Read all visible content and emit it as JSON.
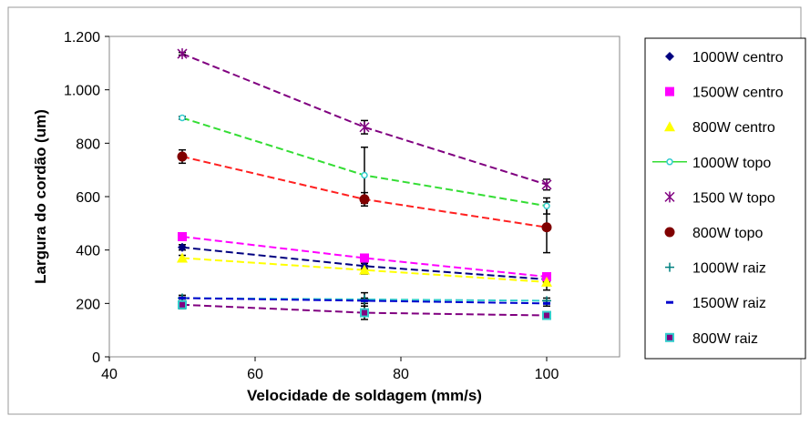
{
  "chart_data": {
    "type": "scatter",
    "x_label": "Velocidade de soldagem (mm/s)",
    "y_label": "Largura do cordão (um)",
    "x": [
      50,
      75,
      100
    ],
    "xlim": [
      40,
      110
    ],
    "xticks": [
      40,
      60,
      80,
      100
    ],
    "ylim": [
      0,
      1200
    ],
    "yticks": [
      0,
      200,
      400,
      600,
      800,
      {
        "value": 1000,
        "label": "1.000"
      },
      {
        "value": 1200,
        "label": "1.200"
      }
    ],
    "series": [
      {
        "name": "1000W centro",
        "color": "#000080",
        "marker": "diamond",
        "values": [
          410,
          340,
          290
        ],
        "errors": [
          10,
          10,
          10
        ]
      },
      {
        "name": "1500W centro",
        "color": "#ff00ff",
        "marker": "square",
        "values": [
          450,
          370,
          300
        ],
        "errors": [
          10,
          10,
          10
        ]
      },
      {
        "name": "800W centro",
        "color": "#ffff00",
        "marker": "triangle",
        "values": [
          370,
          325,
          280
        ],
        "errors": [
          10,
          15,
          30
        ]
      },
      {
        "name": "1000W topo",
        "color": "#33cccc",
        "trend_color": "#33dd33",
        "marker": "circle-open",
        "values": [
          895,
          680,
          565
        ],
        "errors": [
          5,
          105,
          30
        ]
      },
      {
        "name": "1500 W topo",
        "color": "#800080",
        "marker": "asterisk",
        "values": [
          1135,
          860,
          645
        ],
        "errors": [
          5,
          25,
          20
        ]
      },
      {
        "name": "800W topo",
        "color": "#800000",
        "trend_color": "#ff2020",
        "marker": "circle",
        "values": [
          750,
          590,
          485
        ],
        "errors": [
          25,
          25,
          95
        ]
      },
      {
        "name": "1000W raiz",
        "color": "#008080",
        "trend_color": "#33cccc",
        "marker": "plus",
        "values": [
          220,
          215,
          210
        ],
        "errors": [
          10,
          25,
          10
        ]
      },
      {
        "name": "1500W raiz",
        "color": "#0000cc",
        "marker": "dash",
        "values": [
          220,
          210,
          200
        ],
        "errors": [
          10,
          10,
          10
        ]
      },
      {
        "name": "800W raiz",
        "color": "#33cccc",
        "trend_color": "#800080",
        "marker": "square-edged",
        "values": [
          195,
          165,
          155
        ],
        "errors": [
          15,
          25,
          10
        ]
      }
    ]
  }
}
